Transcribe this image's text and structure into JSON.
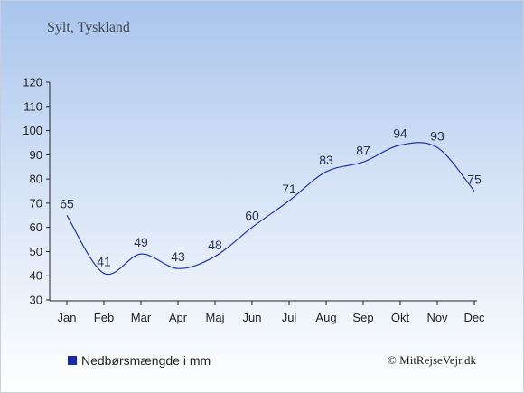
{
  "title": "Sylt, Tyskland",
  "legend_label": "Nedbørsmængde i mm",
  "copyright": "© MitRejseVejr.dk",
  "colors": {
    "line": "#2233aa",
    "axis": "#222222",
    "legend_swatch": "#1a2aa8"
  },
  "chart_data": {
    "type": "line",
    "title": "Sylt, Tyskland",
    "categories": [
      "Jan",
      "Feb",
      "Mar",
      "Apr",
      "Maj",
      "Jun",
      "Jul",
      "Aug",
      "Sep",
      "Okt",
      "Nov",
      "Dec"
    ],
    "series": [
      {
        "name": "Nedbørsmængde i mm",
        "values": [
          65,
          41,
          49,
          43,
          48,
          60,
          71,
          83,
          87,
          94,
          93,
          75
        ]
      }
    ],
    "ylim": [
      30,
      120
    ],
    "yticks": [
      30,
      40,
      50,
      60,
      70,
      80,
      90,
      100,
      110,
      120
    ],
    "grid": false,
    "legend": "bottom-left",
    "data_labels": true
  }
}
